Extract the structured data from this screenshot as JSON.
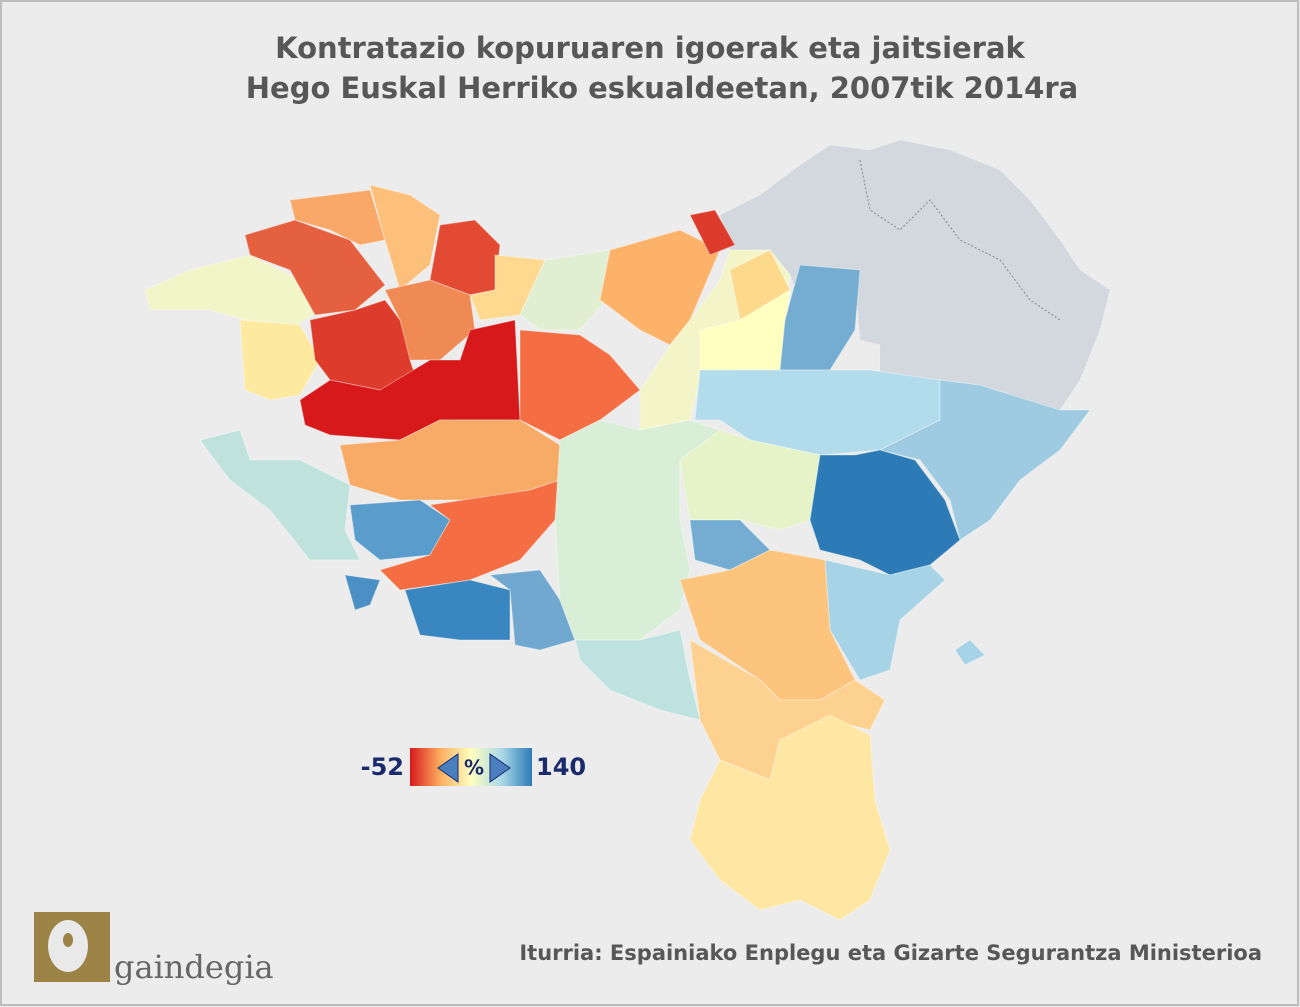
{
  "header": {
    "title": [
      "Kontratazio kopuruaren igoerak eta jaitsierak",
      "Hego Euskal Herriko eskualdeetan, 2007tik 2014ra"
    ]
  },
  "legend": {
    "min": -52,
    "unit": "%",
    "max": 140
  },
  "footer": {
    "source": "Iturria: Espainiako Enplegu eta Gizarte Segurantza Ministerioa",
    "logo": "gaindegia"
  }
}
